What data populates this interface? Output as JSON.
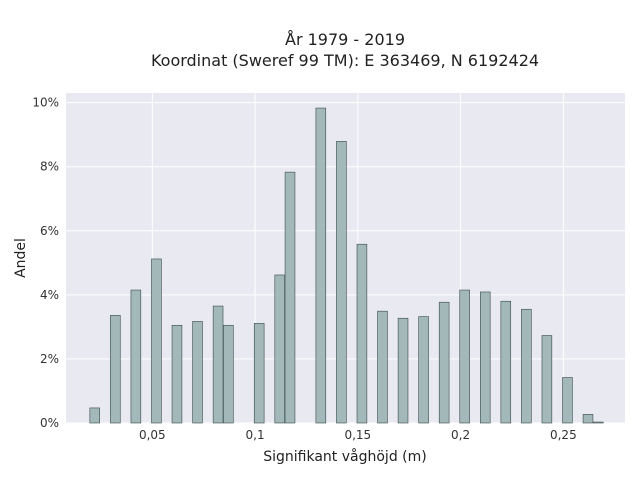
{
  "chart_data": {
    "type": "bar",
    "title": "År 1979 - 2019",
    "subtitle": "Koordinat (Sweref 99 TM): E 363469, N 6192424",
    "xlabel": "Signifikant våghöjd (m)",
    "ylabel": "Andel",
    "xlim": [
      0.008,
      0.28
    ],
    "ylim": [
      0,
      10.3
    ],
    "x_ticks": [
      {
        "value": 0.05,
        "label": "0,05"
      },
      {
        "value": 0.1,
        "label": "0,1"
      },
      {
        "value": 0.15,
        "label": "0,15"
      },
      {
        "value": 0.2,
        "label": "0,2"
      },
      {
        "value": 0.25,
        "label": "0,25"
      }
    ],
    "y_ticks": [
      {
        "value": 0,
        "label": "0%"
      },
      {
        "value": 2,
        "label": "2%"
      },
      {
        "value": 4,
        "label": "4%"
      },
      {
        "value": 6,
        "label": "6%"
      },
      {
        "value": 8,
        "label": "8%"
      },
      {
        "value": 10,
        "label": "10%"
      }
    ],
    "bar_width": 0.0048,
    "bar_color": "#a3b8b8",
    "bar_edge_color": "#3a4a4a",
    "plot_bg": "#e8e9f1",
    "grid": true,
    "bars": [
      {
        "x": 0.022,
        "y": 0.47
      },
      {
        "x": 0.032,
        "y": 3.36
      },
      {
        "x": 0.042,
        "y": 4.15
      },
      {
        "x": 0.052,
        "y": 5.12
      },
      {
        "x": 0.062,
        "y": 3.05
      },
      {
        "x": 0.072,
        "y": 3.17
      },
      {
        "x": 0.082,
        "y": 3.65
      },
      {
        "x": 0.087,
        "y": 3.05
      },
      {
        "x": 0.102,
        "y": 3.11
      },
      {
        "x": 0.112,
        "y": 4.62
      },
      {
        "x": 0.117,
        "y": 7.83
      },
      {
        "x": 0.132,
        "y": 9.83
      },
      {
        "x": 0.142,
        "y": 8.79
      },
      {
        "x": 0.152,
        "y": 5.58
      },
      {
        "x": 0.162,
        "y": 3.49
      },
      {
        "x": 0.172,
        "y": 3.27
      },
      {
        "x": 0.182,
        "y": 3.32
      },
      {
        "x": 0.192,
        "y": 3.77
      },
      {
        "x": 0.202,
        "y": 4.15
      },
      {
        "x": 0.212,
        "y": 4.09
      },
      {
        "x": 0.222,
        "y": 3.8
      },
      {
        "x": 0.232,
        "y": 3.55
      },
      {
        "x": 0.242,
        "y": 2.73
      },
      {
        "x": 0.252,
        "y": 1.42
      },
      {
        "x": 0.262,
        "y": 0.27
      },
      {
        "x": 0.267,
        "y": 0.03
      }
    ]
  }
}
